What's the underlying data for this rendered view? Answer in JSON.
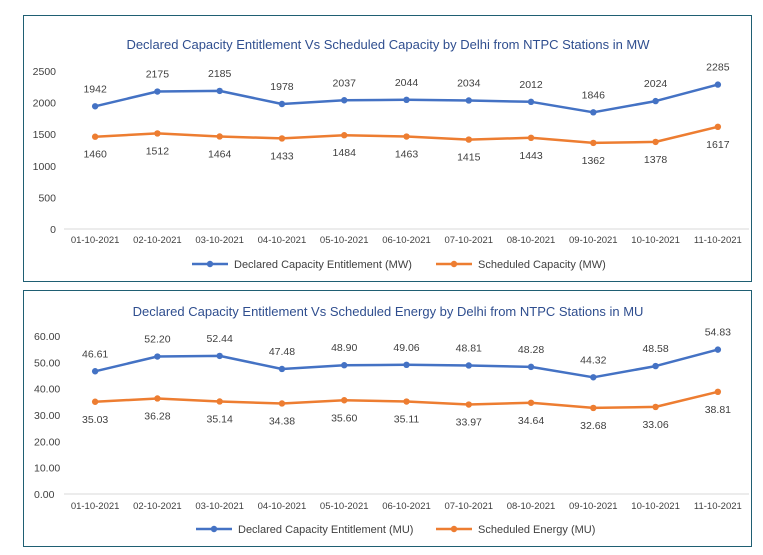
{
  "chart_data": [
    {
      "type": "line",
      "title": "Declared Capacity Entitlement Vs Scheduled Capacity by Delhi from NTPC Stations in MW",
      "categories": [
        "01-10-2021",
        "02-10-2021",
        "03-10-2021",
        "04-10-2021",
        "05-10-2021",
        "06-10-2021",
        "07-10-2021",
        "08-10-2021",
        "09-10-2021",
        "10-10-2021",
        "11-10-2021"
      ],
      "ylim": [
        0,
        2500
      ],
      "yticks": [
        "0",
        "500",
        "1000",
        "1500",
        "2000",
        "2500"
      ],
      "grid": false,
      "legend_position": "bottom",
      "series": [
        {
          "name": "Declared Capacity Entitlement (MW)",
          "color": "#4472c4",
          "values": [
            1942,
            2175,
            2185,
            1978,
            2037,
            2044,
            2034,
            2012,
            1846,
            2024,
            2285
          ],
          "labels": [
            "1942",
            "2175",
            "2185",
            "1978",
            "2037",
            "2044",
            "2034",
            "2012",
            "1846",
            "2024",
            "2285"
          ]
        },
        {
          "name": "Scheduled Capacity (MW)",
          "color": "#ed7d31",
          "values": [
            1460,
            1512,
            1464,
            1433,
            1484,
            1463,
            1415,
            1443,
            1362,
            1378,
            1617
          ],
          "labels": [
            "1460",
            "1512",
            "1464",
            "1433",
            "1484",
            "1463",
            "1415",
            "1443",
            "1362",
            "1378",
            "1617"
          ]
        }
      ]
    },
    {
      "type": "line",
      "title": "Declared Capacity Entitlement Vs Scheduled Energy by Delhi from NTPC Stations in MU",
      "categories": [
        "01-10-2021",
        "02-10-2021",
        "03-10-2021",
        "04-10-2021",
        "05-10-2021",
        "06-10-2021",
        "07-10-2021",
        "08-10-2021",
        "09-10-2021",
        "10-10-2021",
        "11-10-2021"
      ],
      "ylim": [
        0,
        60
      ],
      "yticks": [
        "0.00",
        "10.00",
        "20.00",
        "30.00",
        "40.00",
        "50.00",
        "60.00"
      ],
      "grid": false,
      "legend_position": "bottom",
      "series": [
        {
          "name": "Declared Capacity Entitlement (MU)",
          "color": "#4472c4",
          "values": [
            46.61,
            52.2,
            52.44,
            47.48,
            48.9,
            49.06,
            48.81,
            48.28,
            44.32,
            48.58,
            54.83
          ],
          "labels": [
            "46.61",
            "52.20",
            "52.44",
            "47.48",
            "48.90",
            "49.06",
            "48.81",
            "48.28",
            "44.32",
            "48.58",
            "54.83"
          ]
        },
        {
          "name": "Scheduled Energy (MU)",
          "color": "#ed7d31",
          "values": [
            35.03,
            36.28,
            35.14,
            34.38,
            35.6,
            35.11,
            33.97,
            34.64,
            32.68,
            33.06,
            38.81
          ],
          "labels": [
            "35.03",
            "36.28",
            "35.14",
            "34.38",
            "35.60",
            "35.11",
            "33.97",
            "34.64",
            "32.68",
            "33.06",
            "38.81"
          ]
        }
      ]
    }
  ]
}
